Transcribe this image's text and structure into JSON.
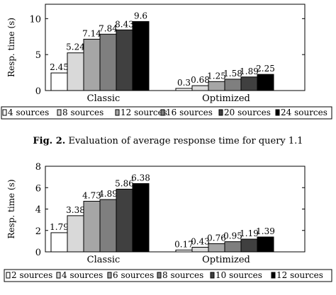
{
  "caption": {
    "label": "Fig. 2.",
    "text": "Evaluation of average response time for query 1.1"
  },
  "chart_data": [
    {
      "type": "bar",
      "ylabel": "Resp. time (s)",
      "ylim": [
        0,
        12
      ],
      "yticks": [
        0,
        5,
        10
      ],
      "categories": [
        "Classic",
        "Optimized"
      ],
      "legend_position": "bottom",
      "series": [
        {
          "name": "4 sources",
          "color": "#ffffff",
          "values": [
            2.45,
            0.3
          ]
        },
        {
          "name": "8 sources",
          "color": "#d9d9d9",
          "values": [
            5.24,
            0.68
          ]
        },
        {
          "name": "12 sources",
          "color": "#a6a6a6",
          "values": [
            7.14,
            1.25
          ]
        },
        {
          "name": "16 sources",
          "color": "#7f7f7f",
          "values": [
            7.84,
            1.58
          ]
        },
        {
          "name": "20 sources",
          "color": "#404040",
          "values": [
            8.43,
            1.89
          ]
        },
        {
          "name": "24 sources",
          "color": "#000000",
          "values": [
            9.6,
            2.25
          ]
        }
      ],
      "value_labels": [
        [
          "2.45",
          "0.3"
        ],
        [
          "5.24",
          "0.68"
        ],
        [
          "7.14",
          "1.25"
        ],
        [
          "7.84",
          "1.58"
        ],
        [
          "8.43",
          "1.89"
        ],
        [
          "9.6",
          "2.25"
        ]
      ]
    },
    {
      "type": "bar",
      "ylabel": "Resp. time (s)",
      "ylim": [
        0,
        8
      ],
      "yticks": [
        0,
        2,
        4,
        6,
        8
      ],
      "categories": [
        "Classic",
        "Optimized"
      ],
      "legend_position": "bottom",
      "series": [
        {
          "name": "2 sources",
          "color": "#ffffff",
          "values": [
            1.79,
            0.17
          ]
        },
        {
          "name": "4 sources",
          "color": "#d9d9d9",
          "values": [
            3.38,
            0.43
          ]
        },
        {
          "name": "6 sources",
          "color": "#a6a6a6",
          "values": [
            4.73,
            0.76
          ]
        },
        {
          "name": "8 sources",
          "color": "#7f7f7f",
          "values": [
            4.89,
            0.95
          ]
        },
        {
          "name": "10 sources",
          "color": "#404040",
          "values": [
            5.86,
            1.19
          ]
        },
        {
          "name": "12 sources",
          "color": "#000000",
          "values": [
            6.38,
            1.39
          ]
        }
      ],
      "value_labels": [
        [
          "1.79",
          "0.17"
        ],
        [
          "3.38",
          "0.43"
        ],
        [
          "4.73",
          "0.76"
        ],
        [
          "4.89",
          "0.95"
        ],
        [
          "5.86",
          "1.19"
        ],
        [
          "6.38",
          "1.39"
        ]
      ]
    }
  ]
}
